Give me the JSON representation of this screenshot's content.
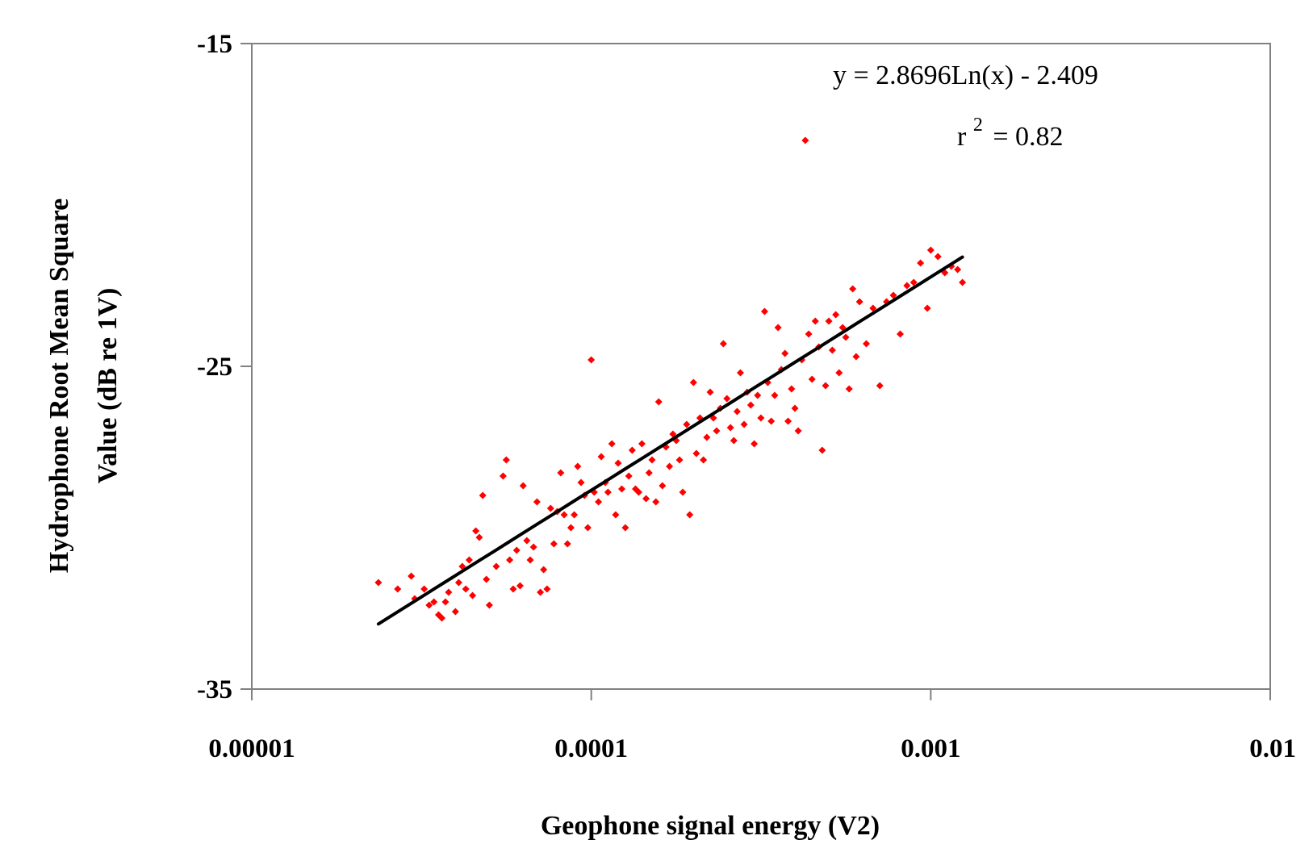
{
  "chart_data": {
    "type": "scatter",
    "xlabel": "Geophone signal energy (V2)",
    "ylabel_lines": [
      "Hydrophone Root Mean Square",
      "Value (dB re 1V)"
    ],
    "x_scale": "log",
    "xlim": [
      1e-05,
      0.01
    ],
    "ylim": [
      -35,
      -15
    ],
    "x_tick_labels": [
      "0.00001",
      "0.0001",
      "0.001",
      "0.01"
    ],
    "x_ticks": [
      1e-05,
      0.0001,
      0.001,
      0.01
    ],
    "y_tick_labels": [
      "-15",
      "-25",
      "-35"
    ],
    "y_ticks": [
      -15,
      -25,
      -35
    ],
    "grid": false,
    "legend": "none",
    "marker_color": "#ff0000",
    "line_color": "#000000",
    "annotations": {
      "equation": "y = 2.8696Ln(x) - 2.409",
      "r2_prefix": "r",
      "r2_exponent": "2",
      "r2_value": "= 0.82"
    },
    "trendline": {
      "equation": "y = 2.8696Ln(x) - 2.409",
      "x_range": [
        2.36e-05,
        0.00124
      ]
    },
    "series": [
      {
        "points": [
          [
            2.36e-05,
            -31.7
          ],
          [
            2.69e-05,
            -31.9
          ],
          [
            2.95e-05,
            -31.5
          ],
          [
            3.02e-05,
            -32.2
          ],
          [
            3.22e-05,
            -31.9
          ],
          [
            3.33e-05,
            -32.4
          ],
          [
            3.44e-05,
            -32.3
          ],
          [
            3.55e-05,
            -32.7
          ],
          [
            3.63e-05,
            -32.8
          ],
          [
            3.72e-05,
            -32.3
          ],
          [
            3.8e-05,
            -32.0
          ],
          [
            3.98e-05,
            -32.6
          ],
          [
            4.07e-05,
            -31.7
          ],
          [
            4.17e-05,
            -31.2
          ],
          [
            4.27e-05,
            -31.9
          ],
          [
            4.37e-05,
            -31.0
          ],
          [
            4.47e-05,
            -32.1
          ],
          [
            4.57e-05,
            -30.1
          ],
          [
            4.68e-05,
            -30.3
          ],
          [
            4.79e-05,
            -29.0
          ],
          [
            4.91e-05,
            -31.6
          ],
          [
            5.01e-05,
            -32.4
          ],
          [
            5.25e-05,
            -31.2
          ],
          [
            5.5e-05,
            -28.4
          ],
          [
            5.62e-05,
            -27.9
          ],
          [
            5.75e-05,
            -31.0
          ],
          [
            5.89e-05,
            -31.9
          ],
          [
            6.03e-05,
            -30.7
          ],
          [
            6.17e-05,
            -31.8
          ],
          [
            6.3e-05,
            -28.7
          ],
          [
            6.46e-05,
            -30.4
          ],
          [
            6.61e-05,
            -31.0
          ],
          [
            6.76e-05,
            -30.6
          ],
          [
            6.92e-05,
            -29.2
          ],
          [
            7.08e-05,
            -32.0
          ],
          [
            7.24e-05,
            -31.3
          ],
          [
            7.41e-05,
            -31.9
          ],
          [
            7.59e-05,
            -29.4
          ],
          [
            7.76e-05,
            -30.5
          ],
          [
            7.94e-05,
            -29.5
          ],
          [
            8.13e-05,
            -28.3
          ],
          [
            8.32e-05,
            -29.6
          ],
          [
            8.51e-05,
            -30.5
          ],
          [
            8.71e-05,
            -30.0
          ],
          [
            8.91e-05,
            -29.6
          ],
          [
            9.12e-05,
            -28.1
          ],
          [
            9.33e-05,
            -28.6
          ],
          [
            9.55e-05,
            -29.0
          ],
          [
            9.77e-05,
            -30.0
          ],
          [
            0.0001,
            -24.8
          ],
          [
            0.000102,
            -28.9
          ],
          [
            0.000105,
            -29.2
          ],
          [
            0.000107,
            -27.8
          ],
          [
            0.00011,
            -28.6
          ],
          [
            0.000112,
            -28.9
          ],
          [
            0.000115,
            -27.4
          ],
          [
            0.000118,
            -29.6
          ],
          [
            0.00012,
            -28.0
          ],
          [
            0.000123,
            -28.8
          ],
          [
            0.000126,
            -30.0
          ],
          [
            0.000129,
            -28.4
          ],
          [
            0.000132,
            -27.6
          ],
          [
            0.000135,
            -28.8
          ],
          [
            0.000138,
            -28.9
          ],
          [
            0.000141,
            -27.4
          ],
          [
            0.000145,
            -29.1
          ],
          [
            0.000148,
            -28.3
          ],
          [
            0.000151,
            -27.9
          ],
          [
            0.000155,
            -29.2
          ],
          [
            0.000158,
            -26.1
          ],
          [
            0.000162,
            -28.7
          ],
          [
            0.000166,
            -27.5
          ],
          [
            0.00017,
            -28.1
          ],
          [
            0.000174,
            -27.1
          ],
          [
            0.000178,
            -27.3
          ],
          [
            0.000182,
            -27.9
          ],
          [
            0.000186,
            -28.9
          ],
          [
            0.000191,
            -26.8
          ],
          [
            0.000195,
            -29.6
          ],
          [
            0.0002,
            -25.5
          ],
          [
            0.000204,
            -27.7
          ],
          [
            0.000209,
            -26.6
          ],
          [
            0.000214,
            -27.9
          ],
          [
            0.000219,
            -27.2
          ],
          [
            0.000224,
            -25.8
          ],
          [
            0.000229,
            -26.6
          ],
          [
            0.000234,
            -27.0
          ],
          [
            0.00024,
            -26.3
          ],
          [
            0.000245,
            -24.3
          ],
          [
            0.000251,
            -26.0
          ],
          [
            0.000257,
            -26.9
          ],
          [
            0.000263,
            -27.3
          ],
          [
            0.000269,
            -26.4
          ],
          [
            0.000275,
            -25.2
          ],
          [
            0.000282,
            -26.8
          ],
          [
            0.000288,
            -25.8
          ],
          [
            0.000295,
            -26.2
          ],
          [
            0.000302,
            -27.4
          ],
          [
            0.000309,
            -25.9
          ],
          [
            0.000316,
            -26.6
          ],
          [
            0.000324,
            -23.3
          ],
          [
            0.000331,
            -25.5
          ],
          [
            0.000339,
            -26.7
          ],
          [
            0.000347,
            -25.9
          ],
          [
            0.000355,
            -23.8
          ],
          [
            0.000363,
            -25.1
          ],
          [
            0.000372,
            -24.6
          ],
          [
            0.00038,
            -26.7
          ],
          [
            0.000389,
            -25.7
          ],
          [
            0.000398,
            -26.3
          ],
          [
            0.000407,
            -27.0
          ],
          [
            0.000417,
            -24.8
          ],
          [
            0.000427,
            -18.0
          ],
          [
            0.000437,
            -24.0
          ],
          [
            0.000447,
            -25.4
          ],
          [
            0.000457,
            -23.6
          ],
          [
            0.000468,
            -24.4
          ],
          [
            0.000479,
            -27.6
          ],
          [
            0.00049,
            -25.6
          ],
          [
            0.000501,
            -23.6
          ],
          [
            0.000513,
            -24.5
          ],
          [
            0.000525,
            -23.4
          ],
          [
            0.000537,
            -25.2
          ],
          [
            0.00055,
            -23.8
          ],
          [
            0.000562,
            -24.1
          ],
          [
            0.000575,
            -25.7
          ],
          [
            0.000589,
            -22.6
          ],
          [
            0.000603,
            -24.7
          ],
          [
            0.000617,
            -23.0
          ],
          [
            0.000646,
            -24.3
          ],
          [
            0.000676,
            -23.2
          ],
          [
            0.000708,
            -25.6
          ],
          [
            0.000741,
            -23.0
          ],
          [
            0.000776,
            -22.8
          ],
          [
            0.000813,
            -24.0
          ],
          [
            0.000851,
            -22.5
          ],
          [
            0.000891,
            -22.4
          ],
          [
            0.000933,
            -21.8
          ],
          [
            0.000977,
            -23.2
          ],
          [
            0.001,
            -21.4
          ],
          [
            0.00105,
            -21.6
          ],
          [
            0.0011,
            -22.1
          ],
          [
            0.00115,
            -21.9
          ],
          [
            0.0012,
            -22.0
          ],
          [
            0.00124,
            -22.4
          ]
        ]
      }
    ]
  }
}
